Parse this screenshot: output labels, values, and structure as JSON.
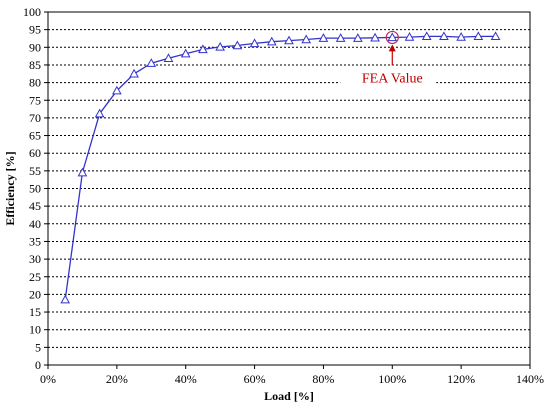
{
  "chart_data": {
    "type": "line",
    "title": "",
    "xlabel": "Load [%]",
    "ylabel": "Efficiency [%]",
    "xlim": [
      0,
      140
    ],
    "ylim": [
      0,
      100
    ],
    "x_ticks": [
      0,
      20,
      40,
      60,
      80,
      100,
      120,
      140
    ],
    "x_tick_labels": [
      "0%",
      "20%",
      "40%",
      "60%",
      "80%",
      "100%",
      "120%",
      "140%"
    ],
    "y_ticks": [
      0,
      5,
      10,
      15,
      20,
      25,
      30,
      35,
      40,
      45,
      50,
      55,
      60,
      65,
      70,
      75,
      80,
      85,
      90,
      95,
      100
    ],
    "y_tick_labels": [
      "0",
      "5",
      "10",
      "15",
      "20",
      "25",
      "30",
      "35",
      "40",
      "45",
      "50",
      "55",
      "60",
      "65",
      "70",
      "75",
      "80",
      "85",
      "90",
      "95",
      "100"
    ],
    "grid": true,
    "series": [
      {
        "color": "#3333cc",
        "marker": "triangle",
        "x": [
          5,
          10,
          15,
          20,
          25,
          30,
          35,
          40,
          45,
          50,
          55,
          60,
          65,
          70,
          75,
          80,
          85,
          90,
          95,
          100,
          105,
          110,
          115,
          120,
          125,
          130
        ],
        "y": [
          18.5,
          54.5,
          71.2,
          77.7,
          82.5,
          85.5,
          86.9,
          88.2,
          89.4,
          90.1,
          90.5,
          91.1,
          91.6,
          91.9,
          92.2,
          92.6,
          92.6,
          92.6,
          92.7,
          92.8,
          92.9,
          93.1,
          93.1,
          92.9,
          93.1,
          93.1
        ]
      }
    ],
    "annotation": {
      "text": "FEA Value",
      "color": "#c00000",
      "x": 100,
      "y": 92.8
    }
  }
}
